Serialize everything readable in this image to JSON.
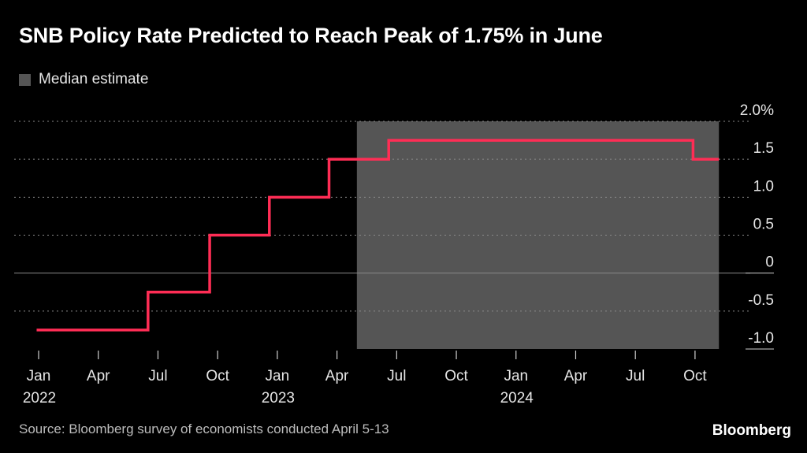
{
  "chart_data": {
    "type": "line",
    "title": "SNB Policy Rate Predicted to Reach Peak of 1.75% in June",
    "legend": [
      {
        "name": "Median estimate",
        "color": "#555555"
      }
    ],
    "ylim": [
      -1.0,
      2.0
    ],
    "y_ticks": [
      {
        "value": 2.0,
        "label": "2.0%"
      },
      {
        "value": 1.5,
        "label": "1.5"
      },
      {
        "value": 1.0,
        "label": "1.0"
      },
      {
        "value": 0.5,
        "label": "0.5"
      },
      {
        "value": 0.0,
        "label": "0"
      },
      {
        "value": -0.5,
        "label": "-0.5"
      },
      {
        "value": -1.0,
        "label": "-1.0"
      }
    ],
    "x_ticks": [
      {
        "month": 0,
        "label": "Jan",
        "year": "2022"
      },
      {
        "month": 3,
        "label": "Apr",
        "year": ""
      },
      {
        "month": 6,
        "label": "Jul",
        "year": ""
      },
      {
        "month": 9,
        "label": "Oct",
        "year": ""
      },
      {
        "month": 12,
        "label": "Jan",
        "year": "2023"
      },
      {
        "month": 15,
        "label": "Apr",
        "year": ""
      },
      {
        "month": 18,
        "label": "Jul",
        "year": ""
      },
      {
        "month": 21,
        "label": "Oct",
        "year": ""
      },
      {
        "month": 24,
        "label": "Jan",
        "year": "2024"
      },
      {
        "month": 27,
        "label": "Apr",
        "year": ""
      },
      {
        "month": 30,
        "label": "Jul",
        "year": ""
      },
      {
        "month": 33,
        "label": "Oct",
        "year": ""
      }
    ],
    "xlim_months": [
      -0.1,
      34.2
    ],
    "forecast_range_months": [
      16.0,
      34.2
    ],
    "series": [
      {
        "name": "SNB policy rate",
        "color": "#ff2d55",
        "step": true,
        "points": [
          {
            "month": -0.1,
            "value": -0.75
          },
          {
            "month": 5.5,
            "value": -0.25
          },
          {
            "month": 8.6,
            "value": 0.5
          },
          {
            "month": 11.6,
            "value": 1.0
          },
          {
            "month": 14.6,
            "value": 1.5
          },
          {
            "month": 17.6,
            "value": 1.75
          },
          {
            "month": 32.9,
            "value": 1.5
          },
          {
            "month": 34.2,
            "value": 1.5
          }
        ]
      }
    ]
  },
  "footer": {
    "source": "Source: Bloomberg survey of economists conducted April 5-13",
    "brand": "Bloomberg"
  }
}
